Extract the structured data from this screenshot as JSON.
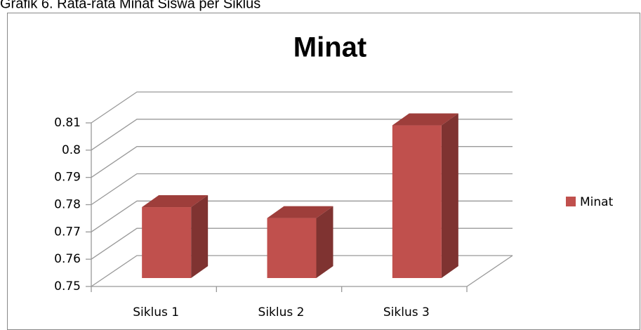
{
  "caption": "Grafik 6. Rata-rata Minat Siswa per Siklus",
  "chart_data": {
    "type": "bar3d",
    "title": "Minat",
    "categories": [
      "Siklus 1",
      "Siklus 2",
      "Siklus 3"
    ],
    "series": [
      {
        "name": "Minat",
        "color": "#c0504d",
        "values": [
          0.776,
          0.772,
          0.806
        ]
      }
    ],
    "ylim": [
      0.75,
      0.81
    ],
    "yticks": [
      0.75,
      0.76,
      0.77,
      0.78,
      0.79,
      0.8,
      0.81
    ],
    "grid": true,
    "legend": "right"
  }
}
